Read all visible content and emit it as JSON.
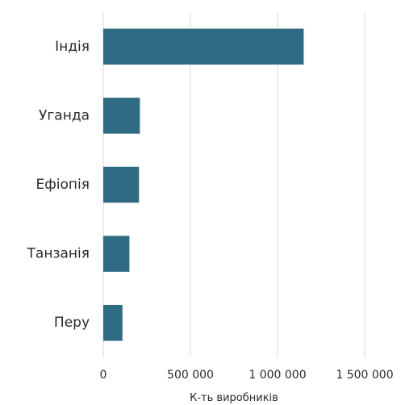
{
  "chart_data": {
    "type": "bar",
    "orientation": "horizontal",
    "categories": [
      "Індія",
      "Уганда",
      "Ефіопія",
      "Танзанія",
      "Перу"
    ],
    "values": [
      1150000,
      210000,
      205000,
      150000,
      110000
    ],
    "xlabel": "К-ть виробників",
    "xlim": [
      0,
      1500000
    ],
    "xticks": [
      0,
      500000,
      1000000,
      1500000
    ],
    "xtick_labels": [
      "0",
      "500 000",
      "1 000 000",
      "1 500 000"
    ],
    "grid": "vertical",
    "bar_color": "#2f6b82",
    "grid_color": "#d9d9d9"
  }
}
